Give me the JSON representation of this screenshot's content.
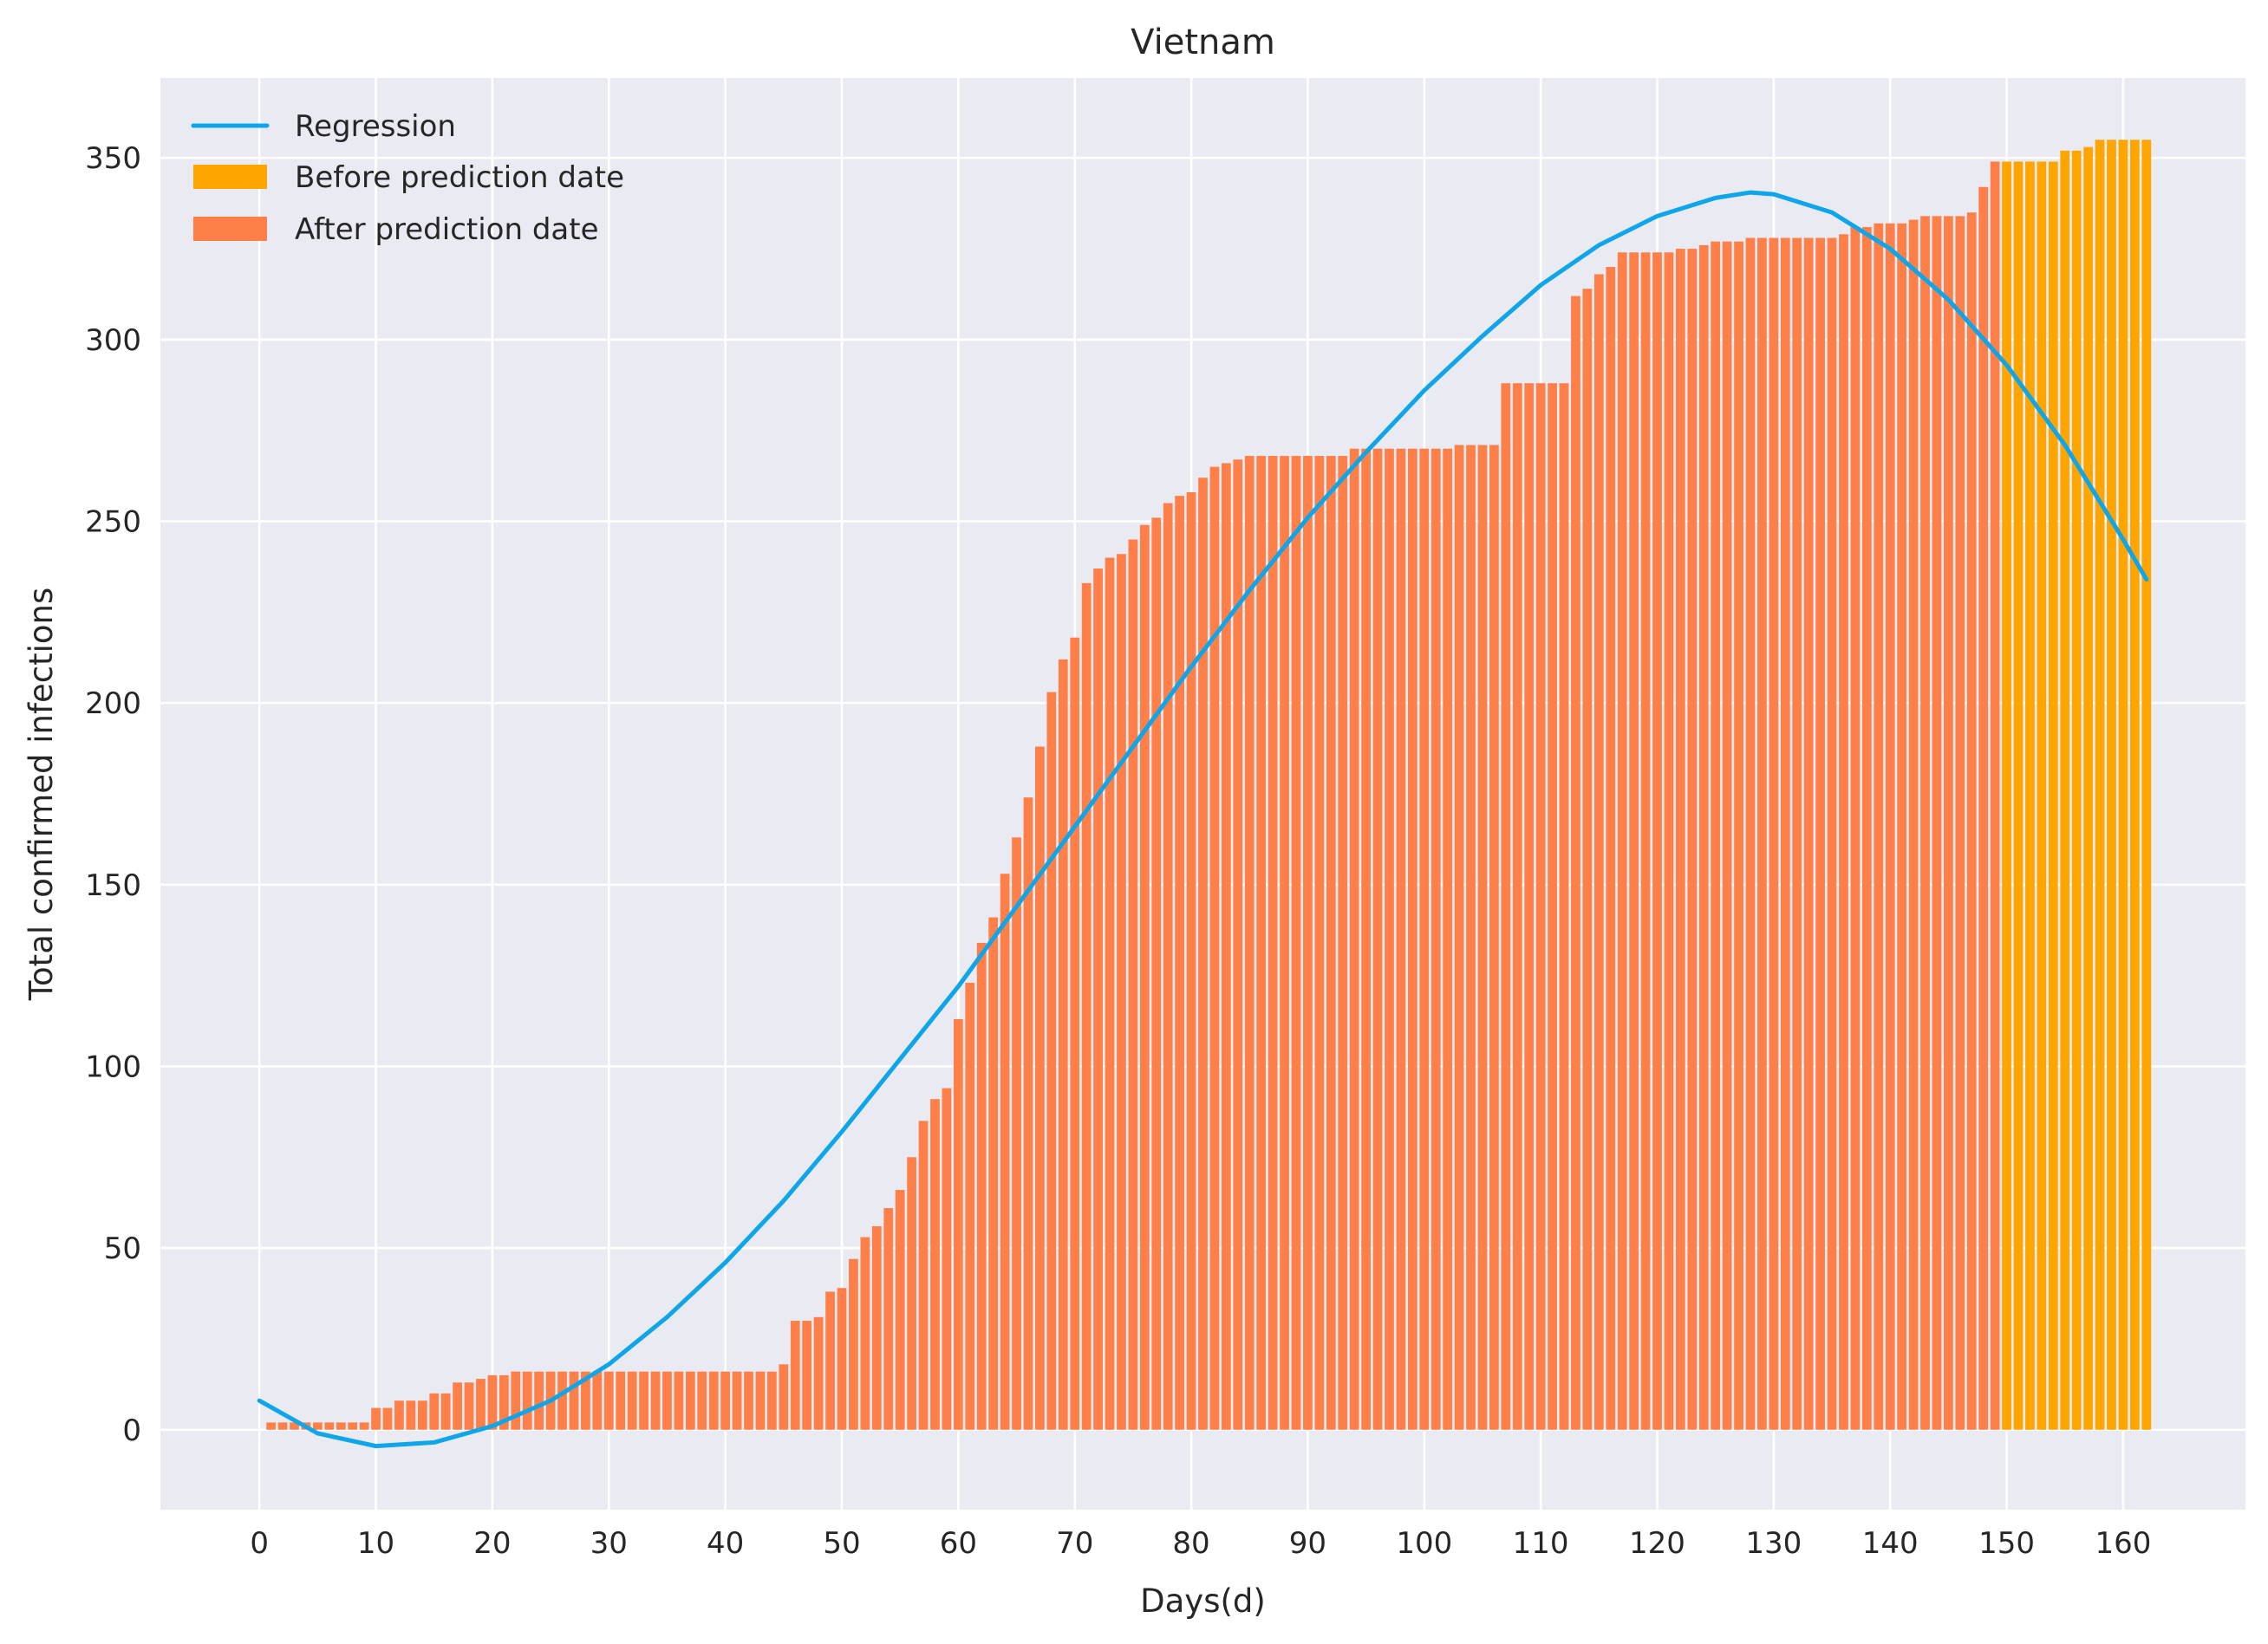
{
  "chart_data": {
    "type": "bar",
    "title": "Vietnam",
    "xlabel": "Days(d)",
    "ylabel": "Total confirmed infections",
    "xlim": [
      -8.5,
      170.5
    ],
    "ylim": [
      -22,
      372
    ],
    "xticks": [
      0,
      10,
      20,
      30,
      40,
      50,
      60,
      70,
      80,
      90,
      100,
      110,
      120,
      130,
      140,
      150,
      160
    ],
    "yticks": [
      0,
      50,
      100,
      150,
      200,
      250,
      300,
      350
    ],
    "grid": true,
    "legend_position": "top-left",
    "split_day": 150,
    "series": [
      {
        "name": "Before prediction date",
        "color": "#ffa500",
        "x_start": 150,
        "values": [
          349,
          349,
          349,
          349,
          349,
          352,
          352,
          353,
          355,
          355,
          355,
          355,
          355
        ]
      },
      {
        "name": "After prediction date",
        "color": "#ff7f48",
        "x_start": 1,
        "values": [
          2,
          2,
          2,
          2,
          2,
          2,
          2,
          2,
          2,
          6,
          6,
          8,
          8,
          8,
          10,
          10,
          13,
          13,
          14,
          15,
          15,
          16,
          16,
          16,
          16,
          16,
          16,
          16,
          16,
          16,
          16,
          16,
          16,
          16,
          16,
          16,
          16,
          16,
          16,
          16,
          16,
          16,
          16,
          16,
          18,
          30,
          30,
          31,
          38,
          39,
          47,
          53,
          56,
          61,
          66,
          75,
          85,
          91,
          94,
          113,
          123,
          134,
          141,
          153,
          163,
          174,
          188,
          203,
          212,
          218,
          233,
          237,
          240,
          241,
          245,
          249,
          251,
          255,
          257,
          258,
          262,
          265,
          266,
          267,
          268,
          268,
          268,
          268,
          268,
          268,
          268,
          268,
          268,
          270,
          270,
          270,
          270,
          270,
          270,
          270,
          270,
          270,
          271,
          271,
          271,
          271,
          288,
          288,
          288,
          288,
          288,
          288,
          312,
          314,
          318,
          320,
          324,
          324,
          324,
          324,
          324,
          325,
          325,
          326,
          327,
          327,
          327,
          328,
          328,
          328,
          328,
          328,
          328,
          328,
          328,
          329,
          331,
          331,
          332,
          332,
          332,
          333,
          334,
          334,
          334,
          334,
          335,
          342,
          349
        ]
      },
      {
        "name": "Regression",
        "type": "line",
        "color": "#0ea5e9",
        "x": [
          0,
          5,
          10,
          15,
          20,
          25,
          30,
          35,
          40,
          45,
          50,
          55,
          60,
          65,
          70,
          75,
          80,
          85,
          90,
          95,
          100,
          105,
          110,
          115,
          120,
          125,
          128,
          130,
          135,
          140,
          145,
          150,
          155,
          160,
          162
        ],
        "y": [
          8,
          -1,
          -4.5,
          -3.5,
          1,
          8,
          18,
          31,
          46,
          63,
          82,
          102,
          122,
          144,
          166,
          188,
          210,
          231,
          251,
          269,
          286,
          301,
          315,
          326,
          334,
          339,
          340.5,
          340,
          335,
          325,
          311,
          293,
          271,
          245,
          234
        ]
      }
    ]
  }
}
